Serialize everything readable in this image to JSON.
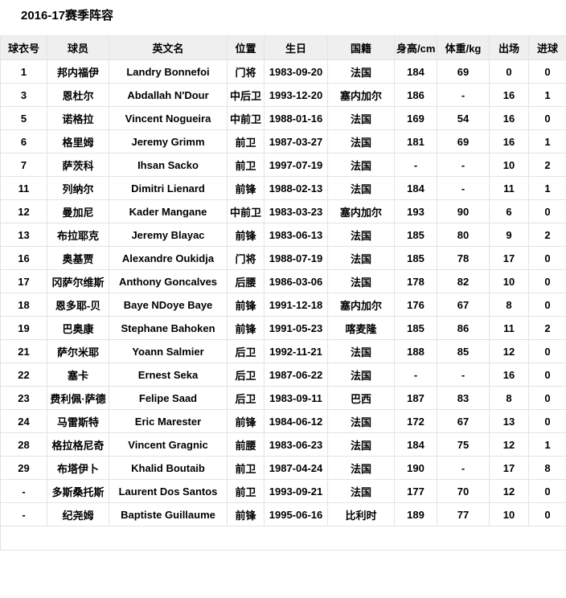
{
  "page": {
    "title": "2016-17赛季阵容"
  },
  "colors": {
    "header_bg": "#efefef",
    "border": "#e3e3e3",
    "text": "#000000",
    "row_bg": "#ffffff"
  },
  "table": {
    "columns": [
      "球衣号",
      "球员",
      "英文名",
      "位置",
      "生日",
      "国籍",
      "身高/cm",
      "体重/kg",
      "出场",
      "进球"
    ],
    "rows": [
      [
        "1",
        "邦内福伊",
        "Landry Bonnefoi",
        "门将",
        "1983-09-20",
        "法国",
        "184",
        "69",
        "0",
        "0"
      ],
      [
        "3",
        "恩杜尔",
        "Abdallah N'Dour",
        "中后卫",
        "1993-12-20",
        "塞内加尔",
        "186",
        "-",
        "16",
        "1"
      ],
      [
        "5",
        "诺格拉",
        "Vincent Nogueira",
        "中前卫",
        "1988-01-16",
        "法国",
        "169",
        "54",
        "16",
        "0"
      ],
      [
        "6",
        "格里姆",
        "Jeremy Grimm",
        "前卫",
        "1987-03-27",
        "法国",
        "181",
        "69",
        "16",
        "1"
      ],
      [
        "7",
        "萨茨科",
        "Ihsan Sacko",
        "前卫",
        "1997-07-19",
        "法国",
        "-",
        "-",
        "10",
        "2"
      ],
      [
        "11",
        "列纳尔",
        "Dimitri Lienard",
        "前锋",
        "1988-02-13",
        "法国",
        "184",
        "-",
        "11",
        "1"
      ],
      [
        "12",
        "曼加尼",
        "Kader Mangane",
        "中前卫",
        "1983-03-23",
        "塞内加尔",
        "193",
        "90",
        "6",
        "0"
      ],
      [
        "13",
        "布拉耶克",
        "Jeremy Blayac",
        "前锋",
        "1983-06-13",
        "法国",
        "185",
        "80",
        "9",
        "2"
      ],
      [
        "16",
        "奥基贾",
        "Alexandre Oukidja",
        "门将",
        "1988-07-19",
        "法国",
        "185",
        "78",
        "17",
        "0"
      ],
      [
        "17",
        "冈萨尔维斯",
        "Anthony Goncalves",
        "后腰",
        "1986-03-06",
        "法国",
        "178",
        "82",
        "10",
        "0"
      ],
      [
        "18",
        "恩多耶-贝",
        "Baye NDoye Baye",
        "前锋",
        "1991-12-18",
        "塞内加尔",
        "176",
        "67",
        "8",
        "0"
      ],
      [
        "19",
        "巴奥康",
        "Stephane Bahoken",
        "前锋",
        "1991-05-23",
        "喀麦隆",
        "185",
        "86",
        "11",
        "2"
      ],
      [
        "21",
        "萨尔米耶",
        "Yoann Salmier",
        "后卫",
        "1992-11-21",
        "法国",
        "188",
        "85",
        "12",
        "0"
      ],
      [
        "22",
        "塞卡",
        "Ernest Seka",
        "后卫",
        "1987-06-22",
        "法国",
        "-",
        "-",
        "16",
        "0"
      ],
      [
        "23",
        "费利佩·萨德",
        "Felipe Saad",
        "后卫",
        "1983-09-11",
        "巴西",
        "187",
        "83",
        "8",
        "0"
      ],
      [
        "24",
        "马雷斯特",
        "Eric Marester",
        "前锋",
        "1984-06-12",
        "法国",
        "172",
        "67",
        "13",
        "0"
      ],
      [
        "28",
        "格拉格尼奇",
        "Vincent Gragnic",
        "前腰",
        "1983-06-23",
        "法国",
        "184",
        "75",
        "12",
        "1"
      ],
      [
        "29",
        "布塔伊卜",
        "Khalid Boutaib",
        "前卫",
        "1987-04-24",
        "法国",
        "190",
        "-",
        "17",
        "8"
      ],
      [
        "-",
        "多斯桑托斯",
        "Laurent Dos Santos",
        "前卫",
        "1993-09-21",
        "法国",
        "177",
        "70",
        "12",
        "0"
      ],
      [
        "-",
        "纪尧姆",
        "Baptiste Guillaume",
        "前锋",
        "1995-06-16",
        "比利时",
        "189",
        "77",
        "10",
        "0"
      ]
    ],
    "empty_footer": ""
  }
}
